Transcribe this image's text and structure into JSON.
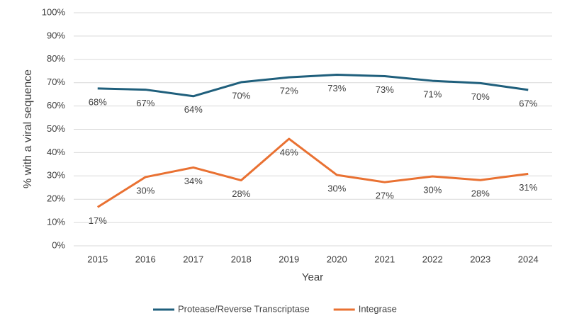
{
  "chart_data": {
    "type": "line",
    "x_label": "Year",
    "y_label": "% with a viral sequence",
    "categories": [
      "2015",
      "2016",
      "2017",
      "2018",
      "2019",
      "2020",
      "2021",
      "2022",
      "2023",
      "2024"
    ],
    "series": [
      {
        "name": "Protease/Reverse Transcriptase",
        "color": "#1f5f7c",
        "values": [
          67.5,
          67,
          64.2,
          70.2,
          72.3,
          73.4,
          72.8,
          70.8,
          69.8,
          66.9
        ],
        "value_labels": [
          "68%",
          "67%",
          "64%",
          "70%",
          "72%",
          "73%",
          "73%",
          "71%",
          "70%",
          "67%"
        ]
      },
      {
        "name": "Integrase",
        "color": "#e97132",
        "values": [
          16.6,
          29.5,
          33.6,
          28.1,
          45.9,
          30.4,
          27.3,
          29.8,
          28.2,
          30.9
        ],
        "value_labels": [
          "17%",
          "30%",
          "34%",
          "28%",
          "46%",
          "30%",
          "27%",
          "30%",
          "28%",
          "31%"
        ]
      }
    ],
    "ylim": [
      0,
      100
    ],
    "yticks": [
      {
        "value": 0,
        "label": "0%"
      },
      {
        "value": 10,
        "label": "10%"
      },
      {
        "value": 20,
        "label": "20%"
      },
      {
        "value": 30,
        "label": "30%"
      },
      {
        "value": 40,
        "label": "40%"
      },
      {
        "value": 50,
        "label": "50%"
      },
      {
        "value": 60,
        "label": "60%"
      },
      {
        "value": 70,
        "label": "70%"
      },
      {
        "value": 80,
        "label": "80%"
      },
      {
        "value": 90,
        "label": "90%"
      },
      {
        "value": 100,
        "label": "100%"
      }
    ],
    "grid": true,
    "legend": "bottom"
  }
}
